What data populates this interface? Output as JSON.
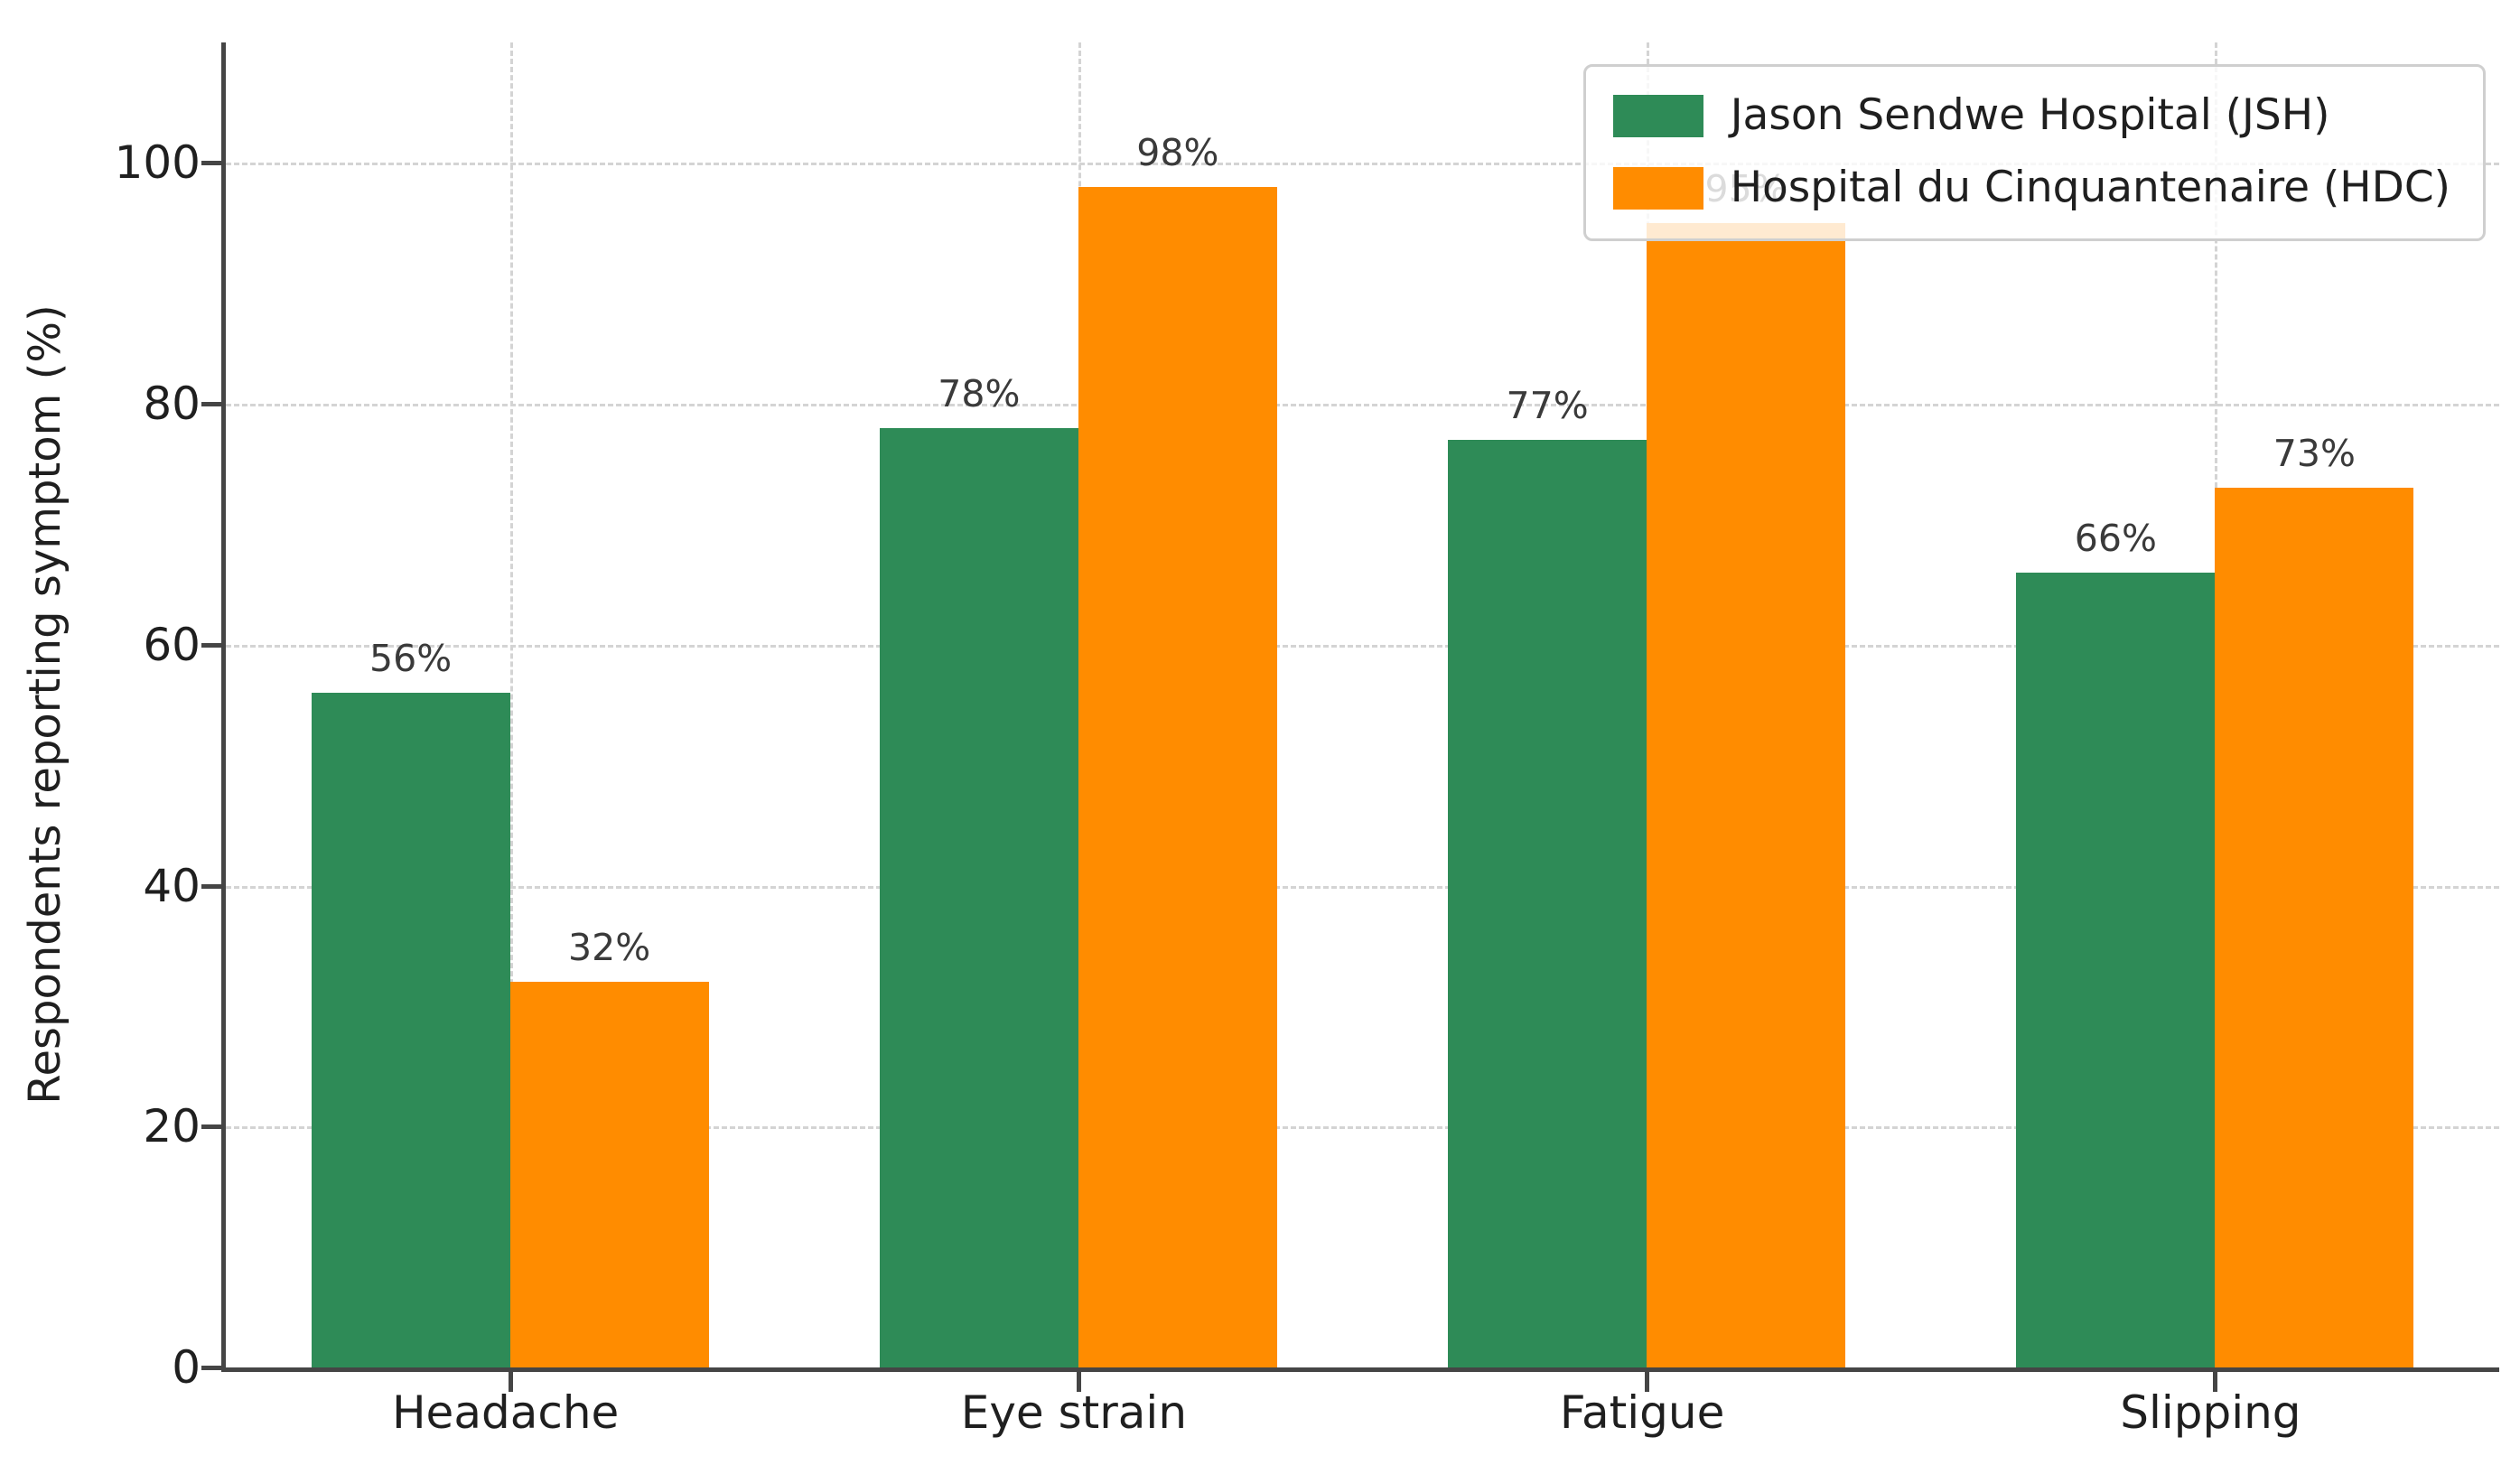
{
  "chart_data": {
    "type": "bar",
    "categories": [
      "Headache",
      "Eye strain",
      "Fatigue",
      "Slipping"
    ],
    "series": [
      {
        "name": "Jason Sendwe Hospital (JSH)",
        "color": "#2E8B57",
        "values": [
          56,
          78,
          77,
          66
        ],
        "labels": [
          "56%",
          "78%",
          "77%",
          "66%"
        ]
      },
      {
        "name": "Hospital du Cinquantenaire (HDC)",
        "color": "#FF8C00",
        "values": [
          32,
          98,
          95,
          73
        ],
        "labels": [
          "32%",
          "98%",
          "95%",
          "73%"
        ]
      }
    ],
    "title": "",
    "xlabel": "",
    "ylabel": "Respondents reporting symptom (%)",
    "yticks": [
      0,
      20,
      40,
      60,
      80,
      100
    ],
    "ylim": [
      0,
      110
    ],
    "grid": "dashed, horizontal and vertical",
    "legend_position": "upper right",
    "note": "95% label of Fatigue HDC bar is partially hidden behind the legend box"
  },
  "colors": {
    "background": "#ffffff",
    "spine": "#454545",
    "grid": "#d4d4d4",
    "tick_label": "#1f1f1f",
    "value_label": "#3a3a3a",
    "legend_border": "#cfcfcf",
    "series_green": "#2E8B57",
    "series_orange": "#FF8C00"
  }
}
